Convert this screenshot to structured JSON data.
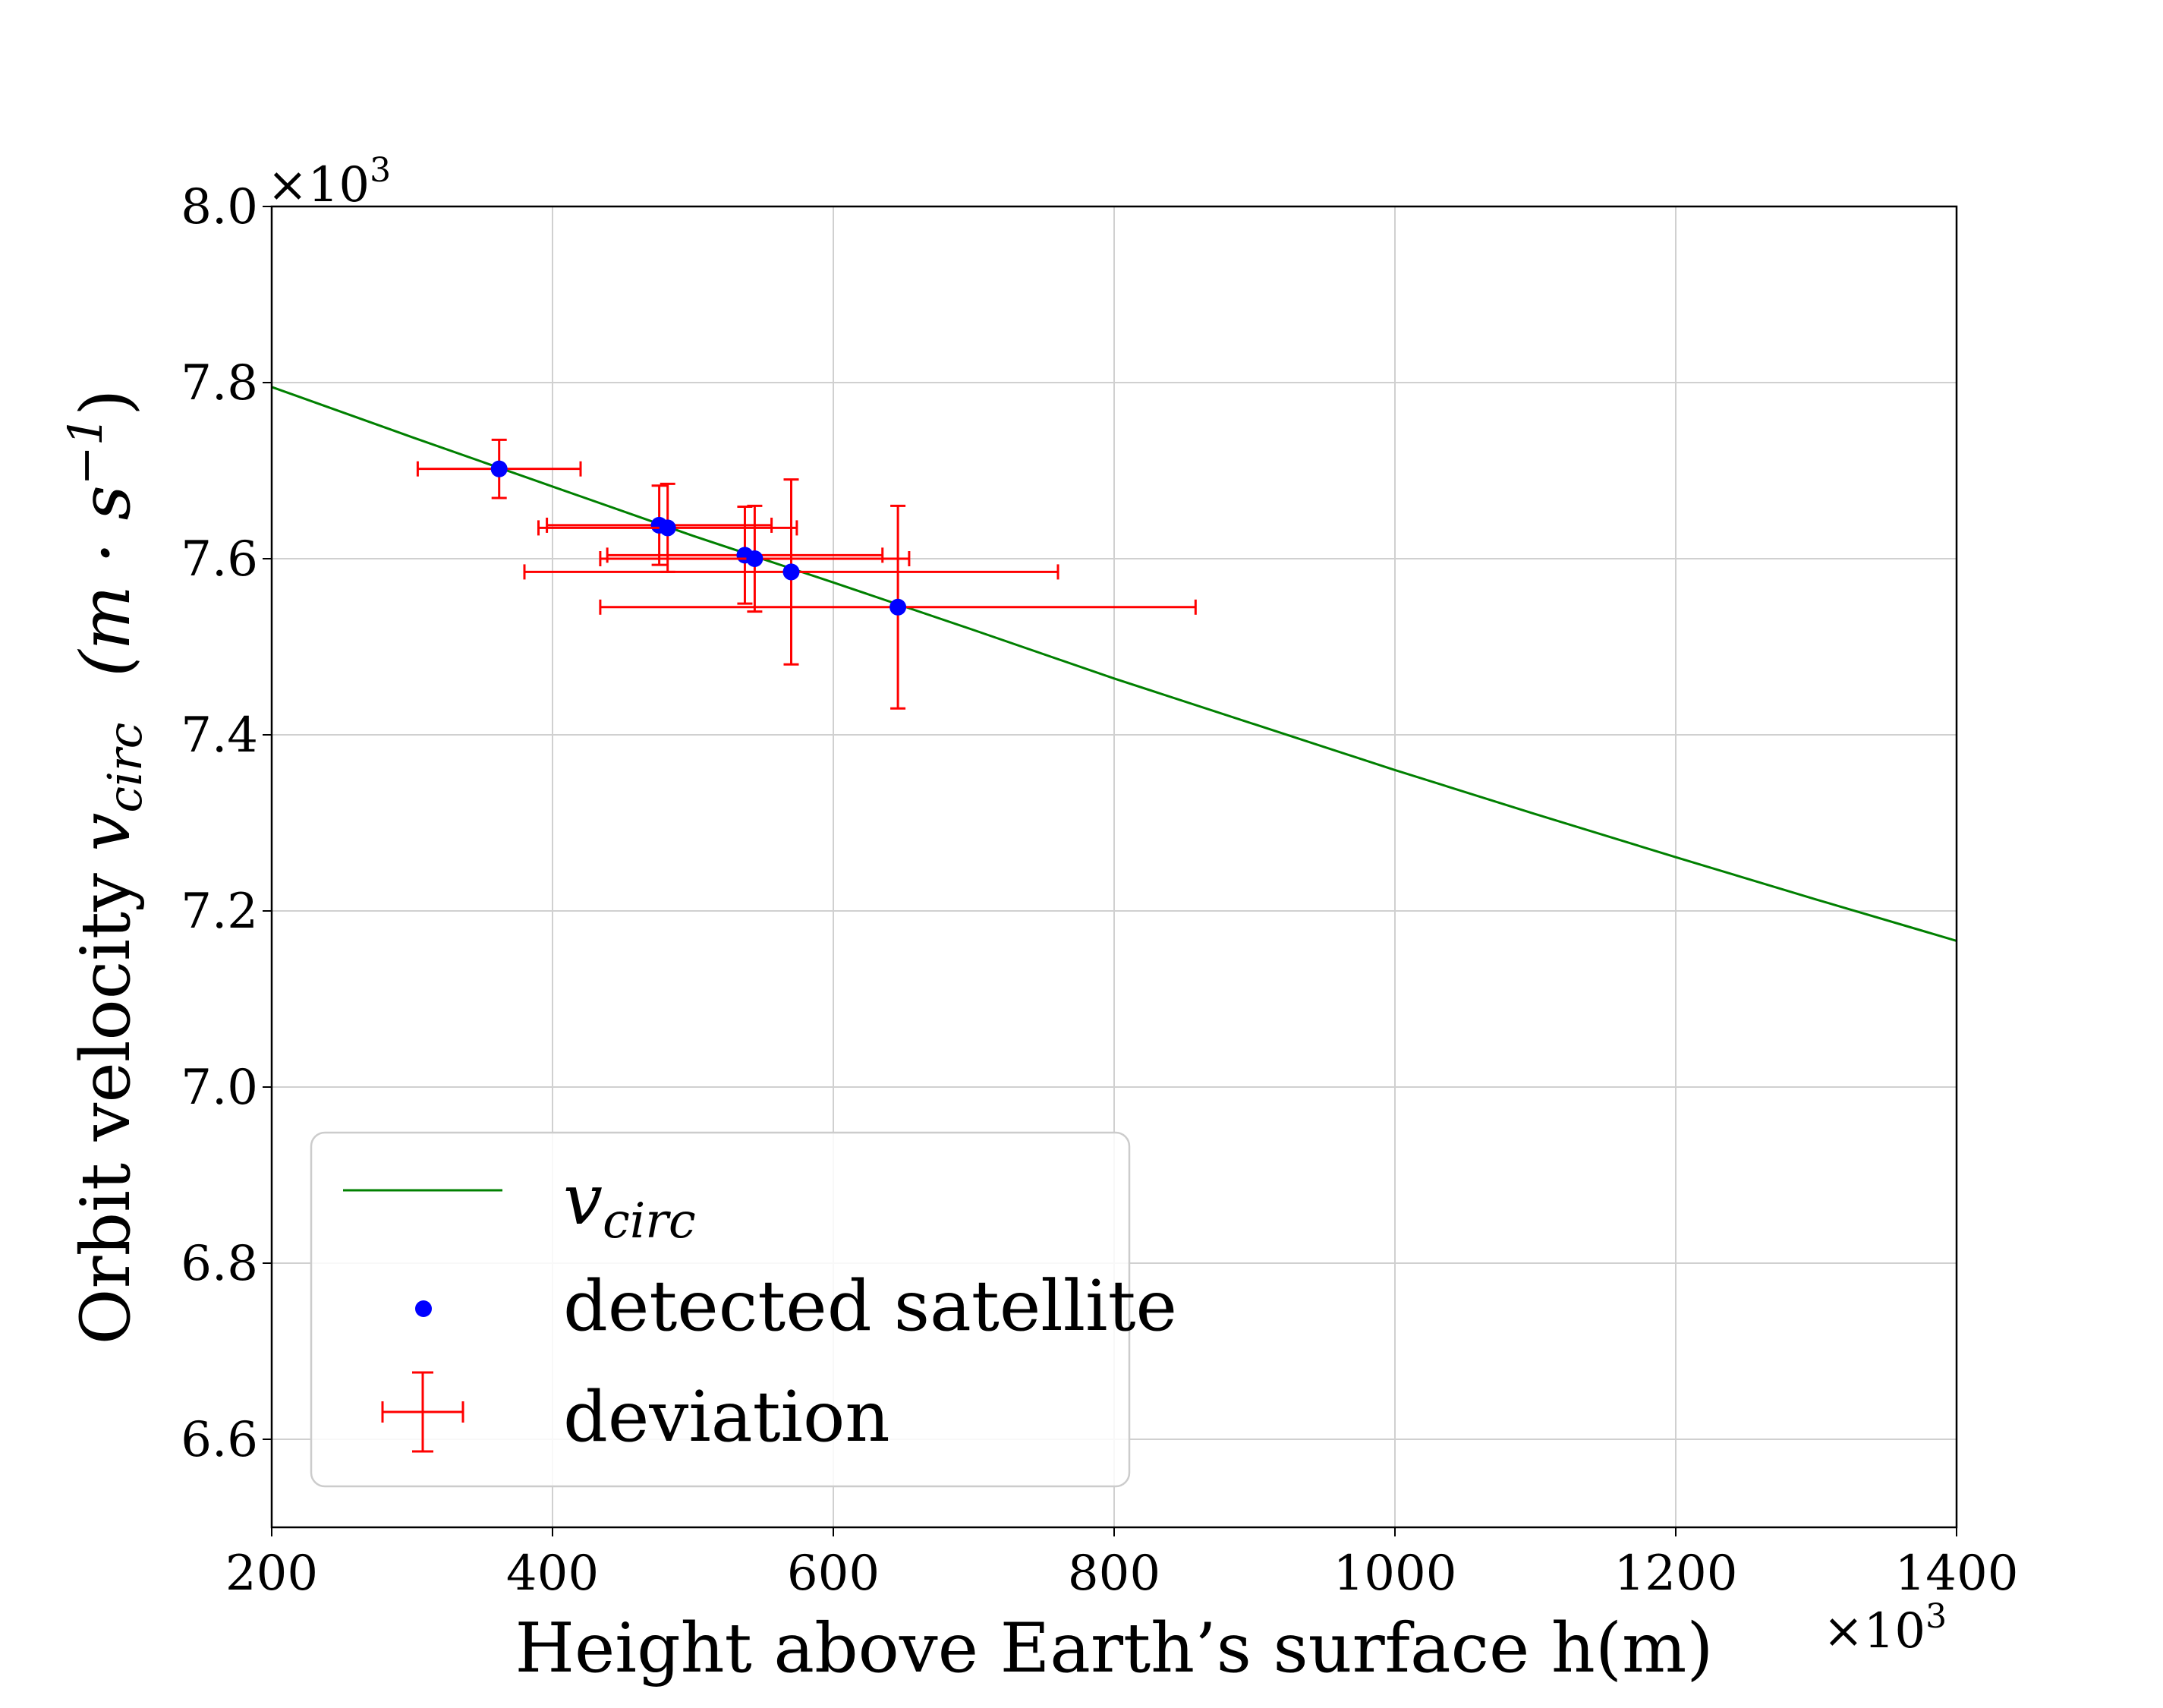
{
  "chart_data": {
    "type": "scatter",
    "title": "",
    "xlabel": "Height above Earth’s surface h(m)",
    "ylabel_text": "Orbit velocity",
    "ylabel_symbol": "v",
    "ylabel_subscript": "circ",
    "ylabel_unit": "(m · s",
    "ylabel_unit_exp": "−1",
    "ylabel_unit_close": ")",
    "x_multiplier_base": "×10",
    "x_multiplier_exp": "3",
    "y_multiplier_base": "×10",
    "y_multiplier_exp": "3",
    "xlim": [
      200,
      1400
    ],
    "ylim": [
      6.5,
      8.0
    ],
    "xticks": [
      200,
      400,
      600,
      800,
      1000,
      1200,
      1400
    ],
    "xtick_labels": [
      "200",
      "400",
      "600",
      "800",
      "1000",
      "1200",
      "1400"
    ],
    "yticks": [
      6.6,
      6.8,
      7.0,
      7.2,
      7.4,
      7.6,
      7.8,
      8.0
    ],
    "ytick_labels": [
      "6.6",
      "6.8",
      "7.0",
      "7.2",
      "7.4",
      "7.6",
      "7.8",
      "8.0"
    ],
    "grid": true,
    "legend_position": "lower-left",
    "legend": [
      {
        "label_symbol": "v",
        "label_subscript": "circ",
        "kind": "line",
        "color": "#008000"
      },
      {
        "label": "detected satellite",
        "kind": "marker",
        "color": "#0000ff"
      },
      {
        "label": "deviation",
        "kind": "errorbar",
        "color": "#ff0000"
      }
    ],
    "series": [
      {
        "kind": "line",
        "color": "#008000",
        "points": [
          {
            "x": 200,
            "y": 7.795
          },
          {
            "x": 300,
            "y": 7.738
          },
          {
            "x": 400,
            "y": 7.682
          },
          {
            "x": 500,
            "y": 7.626
          },
          {
            "x": 600,
            "y": 7.573
          },
          {
            "x": 700,
            "y": 7.519
          },
          {
            "x": 800,
            "y": 7.464
          },
          {
            "x": 900,
            "y": 7.412
          },
          {
            "x": 1000,
            "y": 7.36
          },
          {
            "x": 1100,
            "y": 7.31
          },
          {
            "x": 1200,
            "y": 7.261
          },
          {
            "x": 1300,
            "y": 7.213
          },
          {
            "x": 1400,
            "y": 7.166
          }
        ]
      },
      {
        "kind": "scatter",
        "color": "#0000ff",
        "error_color": "#ff0000",
        "points": [
          {
            "x": 362,
            "y": 7.702,
            "xerr": 58,
            "yerr": 0.033
          },
          {
            "x": 476,
            "y": 7.638,
            "xerr": 80,
            "yerr": 0.045
          },
          {
            "x": 482,
            "y": 7.635,
            "xerr": 92,
            "yerr": 0.05
          },
          {
            "x": 537,
            "y": 7.604,
            "xerr": 98,
            "yerr": 0.055
          },
          {
            "x": 544,
            "y": 7.6,
            "xerr": 110,
            "yerr": 0.06
          },
          {
            "x": 570,
            "y": 7.585,
            "xerr": 190,
            "yerr": 0.105
          },
          {
            "x": 646,
            "y": 7.545,
            "xerr": 212,
            "yerr": 0.115
          }
        ]
      }
    ]
  }
}
